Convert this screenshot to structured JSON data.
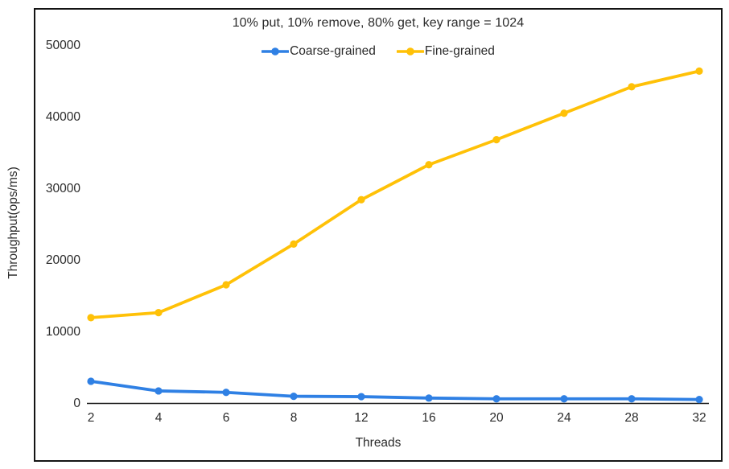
{
  "figure": {
    "title": "10% put, 10% remove, 80% get, key range = 1024",
    "xlabel": "Threads",
    "ylabel": "Throughput(ops/ms)"
  },
  "colors": {
    "coarse": "#2F80E4",
    "fine": "#FFC107",
    "axis": "#1a1a1a",
    "text": "#2b2b2b"
  },
  "chart_data": {
    "type": "line",
    "title": "10% put, 10% remove, 80% get, key range = 1024",
    "xlabel": "Threads",
    "ylabel": "Throughput(ops/ms)",
    "categories": [
      "2",
      "4",
      "6",
      "8",
      "12",
      "16",
      "20",
      "24",
      "28",
      "32"
    ],
    "series": [
      {
        "name": "Coarse-grained",
        "color": "#2F80E4",
        "values": [
          3100,
          1750,
          1550,
          1000,
          950,
          750,
          650,
          650,
          650,
          550
        ]
      },
      {
        "name": "Fine-grained",
        "color": "#FFC107",
        "values": [
          12000,
          12700,
          16600,
          22300,
          28500,
          33400,
          36900,
          40600,
          44300,
          46500
        ]
      }
    ],
    "yticks": [
      0,
      10000,
      20000,
      30000,
      40000,
      50000
    ],
    "ylim": [
      0,
      50000
    ],
    "grid": false,
    "legend_position": "top-center",
    "marker": "circle"
  }
}
